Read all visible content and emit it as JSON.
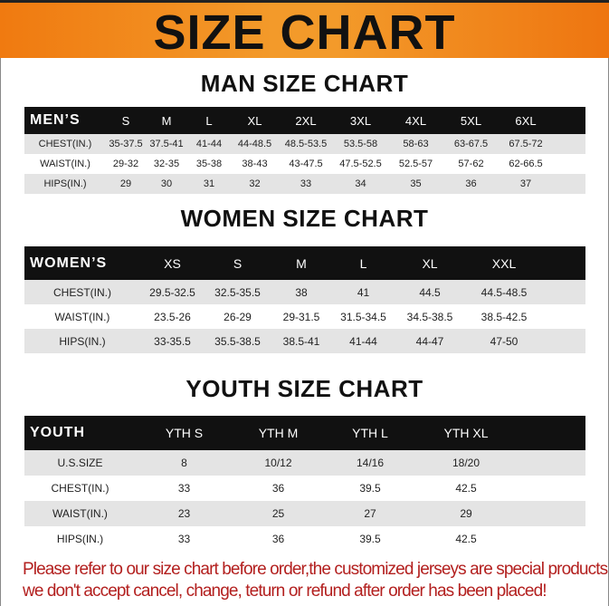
{
  "banner_title": "SIZE CHART",
  "men": {
    "title": "MAN SIZE CHART",
    "corner": "MEN’S",
    "sizes": [
      "S",
      "M",
      "L",
      "XL",
      "2XL",
      "3XL",
      "4XL",
      "5XL",
      "6XL"
    ],
    "rows": [
      {
        "label": "CHEST(IN.)",
        "values": [
          "35-37.5",
          "37.5-41",
          "41-44",
          "44-48.5",
          "48.5-53.5",
          "53.5-58",
          "58-63",
          "63-67.5",
          "67.5-72"
        ]
      },
      {
        "label": "WAIST(IN.)",
        "values": [
          "29-32",
          "32-35",
          "35-38",
          "38-43",
          "43-47.5",
          "47.5-52.5",
          "52.5-57",
          "57-62",
          "62-66.5"
        ]
      },
      {
        "label": "HIPS(IN.)",
        "values": [
          "29",
          "30",
          "31",
          "32",
          "33",
          "34",
          "35",
          "36",
          "37"
        ]
      }
    ]
  },
  "women": {
    "title": "WOMEN SIZE CHART",
    "corner": "WOMEN’S",
    "sizes": [
      "XS",
      "S",
      "M",
      "L",
      "XL",
      "XXL"
    ],
    "rows": [
      {
        "label": "CHEST(IN.)",
        "values": [
          "29.5-32.5",
          "32.5-35.5",
          "38",
          "41",
          "44.5",
          "44.5-48.5"
        ]
      },
      {
        "label": "WAIST(IN.)",
        "values": [
          "23.5-26",
          "26-29",
          "29-31.5",
          "31.5-34.5",
          "34.5-38.5",
          "38.5-42.5"
        ]
      },
      {
        "label": "HIPS(IN.)",
        "values": [
          "33-35.5",
          "35.5-38.5",
          "38.5-41",
          "41-44",
          "44-47",
          "47-50"
        ]
      }
    ]
  },
  "youth": {
    "title": "YOUTH SIZE CHART",
    "corner": "YOUTH",
    "sizes": [
      "YTH S",
      "YTH M",
      "YTH L",
      "YTH XL"
    ],
    "rows": [
      {
        "label": "U.S.SIZE",
        "values": [
          "8",
          "10/12",
          "14/16",
          "18/20"
        ]
      },
      {
        "label": "CHEST(IN.)",
        "values": [
          "33",
          "36",
          "39.5",
          "42.5"
        ]
      },
      {
        "label": "WAIST(IN.)",
        "values": [
          "23",
          "25",
          "27",
          "29"
        ]
      },
      {
        "label": "HIPS(IN.)",
        "values": [
          "33",
          "36",
          "39.5",
          "42.5"
        ]
      }
    ]
  },
  "footer": {
    "line1": "Please refer to our size chart before order,the customized jerseys are special products,",
    "line2": "we don't accept cancel, change, teturn or refund after order has been placed!"
  },
  "colors": {
    "banner": "#f39a2a",
    "header_row": "#111111",
    "alt_row": "#e4e4e4",
    "notice": "#b3201f"
  }
}
